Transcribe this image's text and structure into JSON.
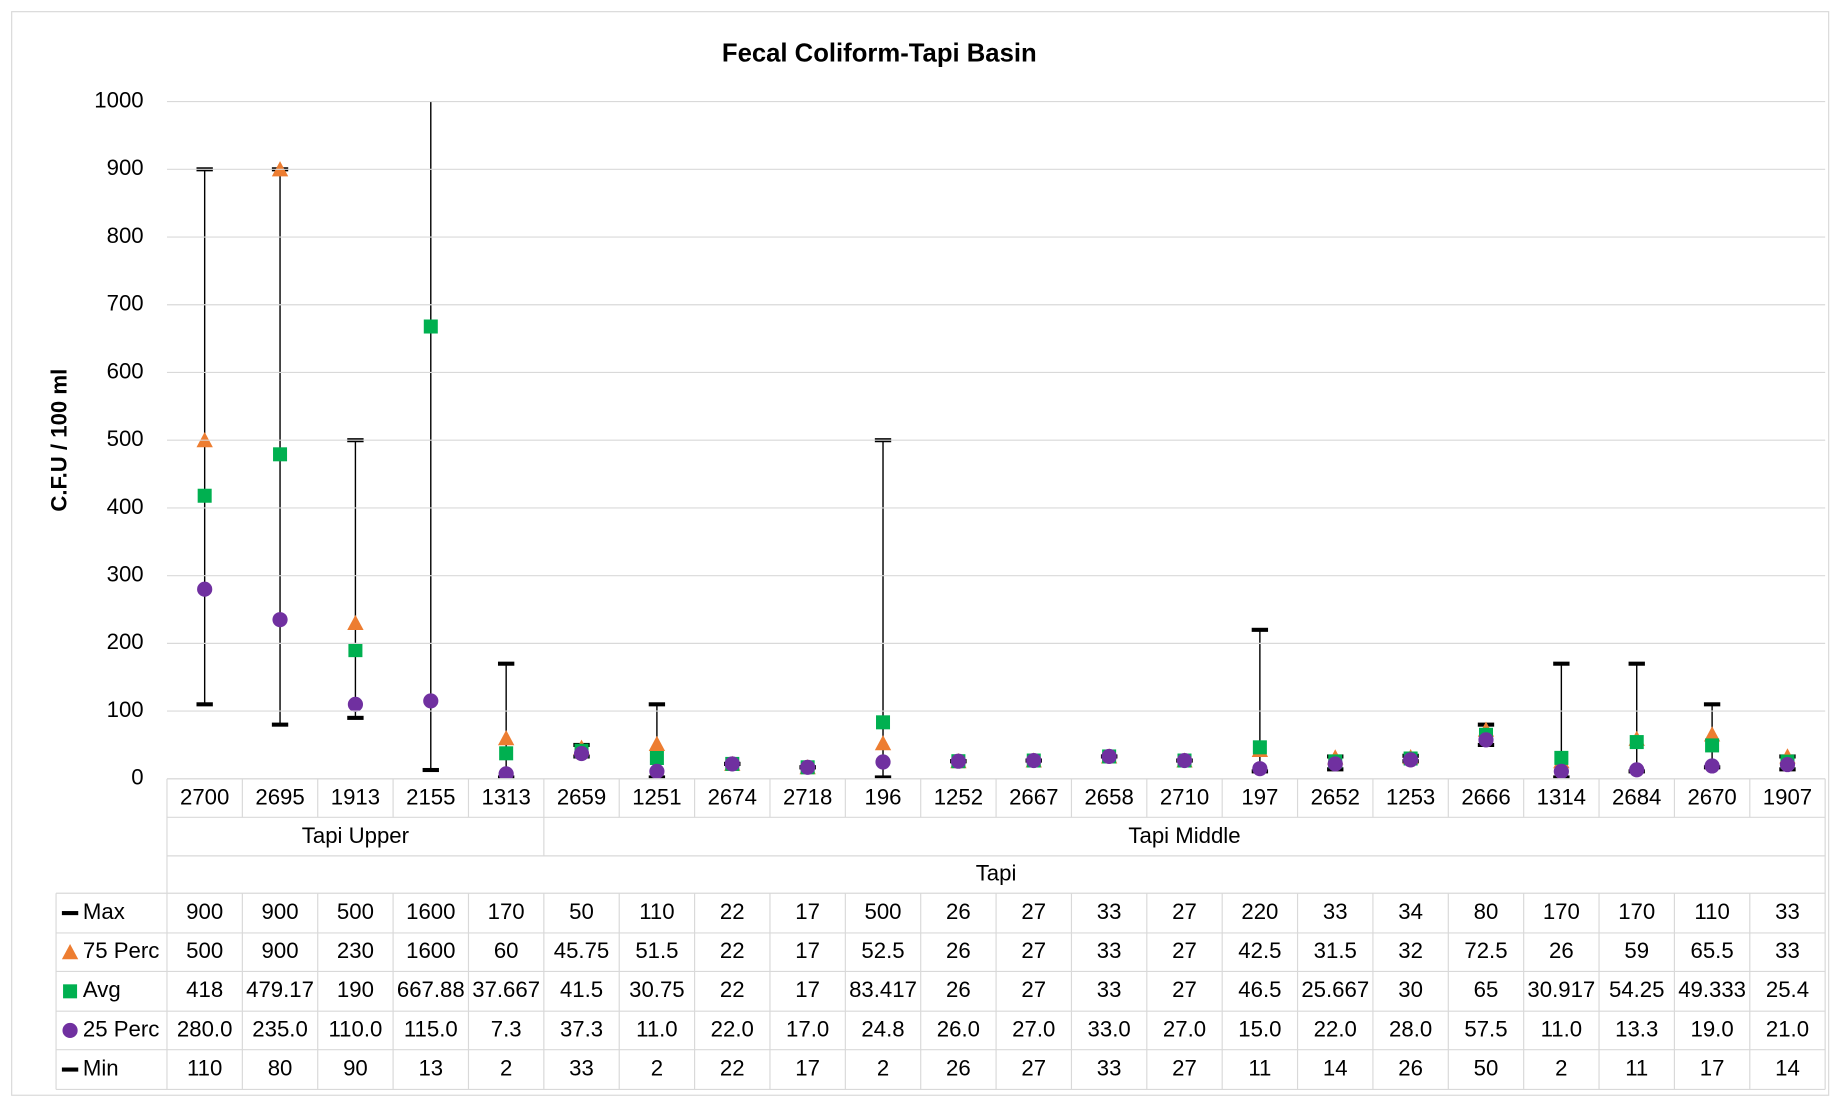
{
  "chart_data": {
    "type": "stock",
    "title": "Fecal Coliform-Tapi Basin",
    "y_label": "C.F.U / 100 ml",
    "ylim": [
      0,
      1000
    ],
    "yticks": [
      0,
      100,
      200,
      300,
      400,
      500,
      600,
      700,
      800,
      900,
      1000
    ],
    "grid": true,
    "categories": [
      "2700",
      "2695",
      "1913",
      "2155",
      "1313",
      "2659",
      "1251",
      "2674",
      "2718",
      "196",
      "1252",
      "2667",
      "2658",
      "2710",
      "197",
      "2652",
      "1253",
      "2666",
      "1314",
      "2684",
      "2670",
      "1907"
    ],
    "groups": [
      {
        "name": "Tapi Upper",
        "size": 5
      },
      {
        "name": "Tapi Middle",
        "size": 17
      }
    ],
    "outer_group": "Tapi",
    "series": [
      {
        "name": "Max",
        "color": "#000000",
        "marker": "dash",
        "values": [
          900,
          900,
          500,
          1600,
          170,
          50,
          110,
          22,
          17,
          500,
          26,
          27,
          33,
          27,
          220,
          33,
          34,
          80,
          170,
          170,
          110,
          33
        ]
      },
      {
        "name": "75 Perc",
        "color": "#ed7d31",
        "marker": "triangle",
        "values": [
          500,
          900,
          230,
          1600,
          60,
          45.75,
          51.5,
          22,
          17,
          52.5,
          26,
          27,
          33,
          27,
          42.5,
          31.5,
          32,
          72.5,
          26,
          59,
          65.5,
          33
        ]
      },
      {
        "name": "Avg",
        "color": "#00b050",
        "marker": "square",
        "values": [
          418,
          479.17,
          190,
          667.88,
          37.667,
          41.5,
          30.75,
          22,
          17,
          83.417,
          26,
          27,
          33,
          27,
          46.5,
          25.667,
          30,
          65,
          30.917,
          54.25,
          49.333,
          25.4
        ]
      },
      {
        "name": "25 Perc",
        "color": "#7030a0",
        "marker": "circle",
        "values": [
          280,
          235,
          110,
          115,
          7.3,
          37.3,
          11,
          22,
          17,
          24.8,
          26,
          27,
          33,
          27,
          15,
          22,
          28,
          57.5,
          11,
          13.3,
          19,
          21
        ],
        "value_labels": [
          "280.0",
          "235.0",
          "110.0",
          "115.0",
          "7.3",
          "37.3",
          "11.0",
          "22.0",
          "17.0",
          "24.8",
          "26.0",
          "27.0",
          "33.0",
          "27.0",
          "15.0",
          "22.0",
          "28.0",
          "57.5",
          "11.0",
          "13.3",
          "19.0",
          "21.0"
        ]
      },
      {
        "name": "Min",
        "color": "#000000",
        "marker": "dash",
        "values": [
          110,
          80,
          90,
          13,
          2,
          33,
          2,
          22,
          17,
          2,
          26,
          27,
          33,
          27,
          11,
          14,
          26,
          50,
          2,
          11,
          17,
          14
        ]
      }
    ]
  }
}
